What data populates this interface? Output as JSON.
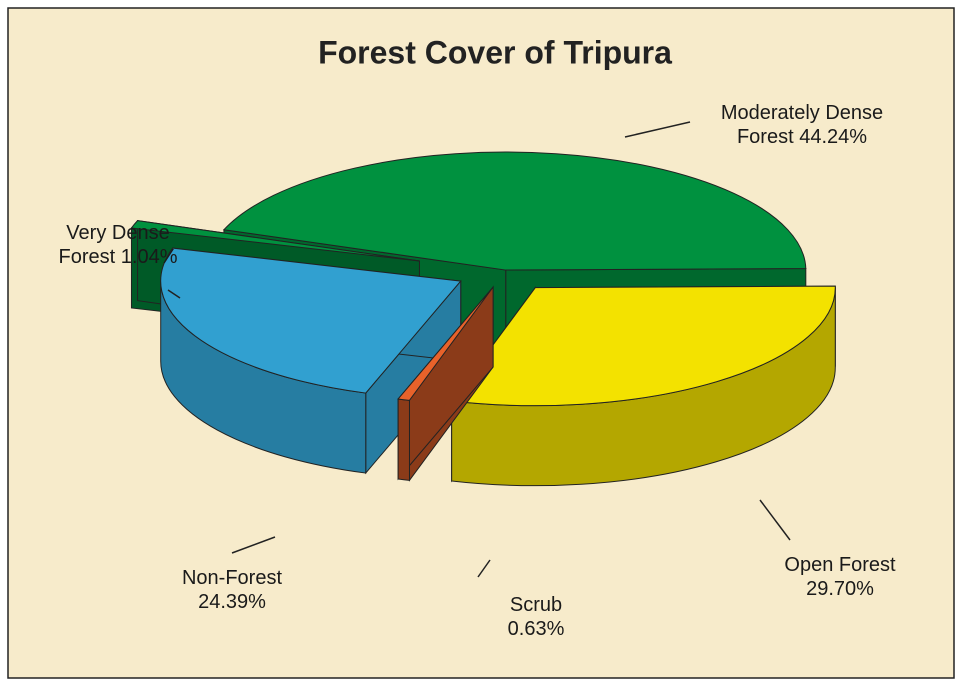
{
  "chart_data": {
    "type": "pie3d",
    "title": "Forest Cover of Tripura",
    "categories": [
      "Moderately Dense Forest",
      "Open Forest",
      "Scrub",
      "Non-Forest",
      "Very Dense Forest"
    ],
    "values": [
      44.24,
      29.7,
      0.63,
      24.39,
      1.04
    ],
    "value_labels": [
      "44.24%",
      "29.70%",
      "0.63%",
      "24.39%",
      "1.04%"
    ],
    "colors": [
      "#00913f",
      "#f3e200",
      "#e8622a",
      "#31a0d0",
      "#00913f"
    ]
  }
}
